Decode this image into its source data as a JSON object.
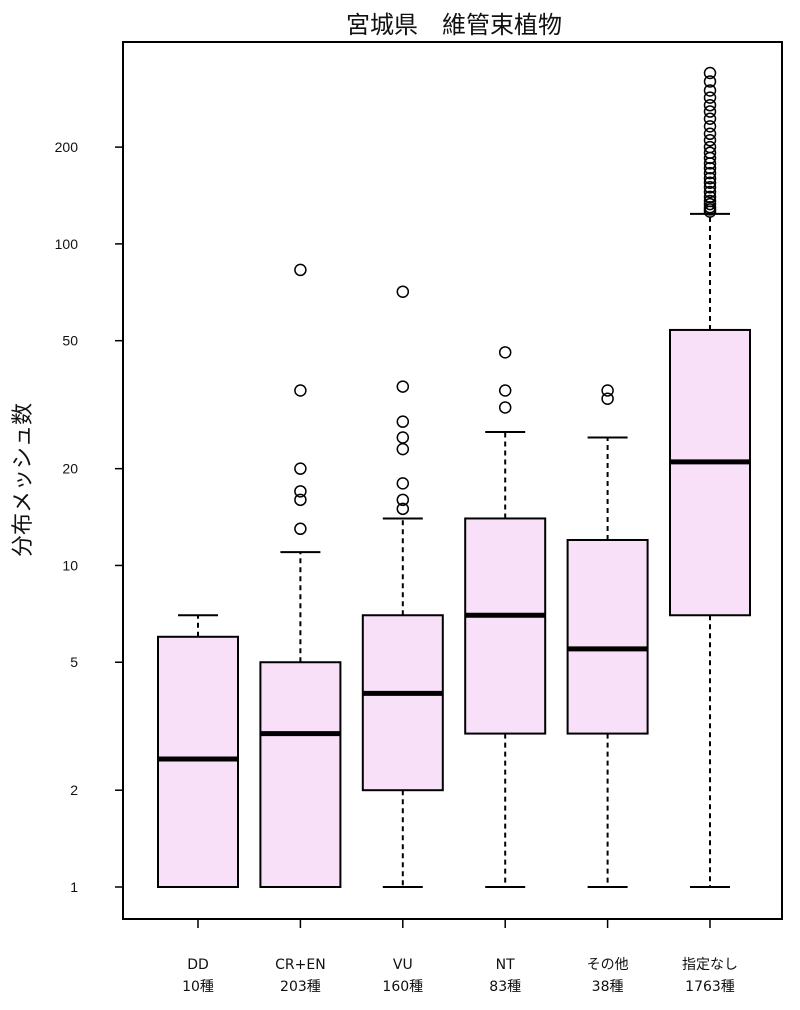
{
  "chart_data": {
    "type": "box",
    "title": "宮城県　維管束植物",
    "ylabel": "分布メッシュ数",
    "xlabel": "",
    "y_scale": "log",
    "ylim": [
      0.9,
      370
    ],
    "y_ticks": [
      1,
      2,
      5,
      10,
      20,
      50,
      100,
      200
    ],
    "y_tick_labels": [
      "1",
      "2",
      "5",
      "10",
      "20",
      "50",
      "100",
      "200"
    ],
    "box_fill": "#f8e0f8",
    "grid": false,
    "categories": [
      {
        "name": "DD",
        "count": "10種",
        "whisker_low": 1,
        "q1": 1,
        "median": 2.5,
        "q3": 6,
        "whisker_high": 7,
        "outliers": []
      },
      {
        "name": "CR+EN",
        "count": "203種",
        "whisker_low": 1,
        "q1": 1,
        "median": 3,
        "q3": 5,
        "whisker_high": 11,
        "outliers": [
          13,
          16,
          17,
          20,
          35,
          83
        ]
      },
      {
        "name": "VU",
        "count": "160種",
        "whisker_low": 1,
        "q1": 2,
        "median": 4,
        "q3": 7,
        "whisker_high": 14,
        "outliers": [
          15,
          16,
          18,
          23,
          25,
          28,
          36,
          71
        ]
      },
      {
        "name": "NT",
        "count": "83種",
        "whisker_low": 1,
        "q1": 3,
        "median": 7,
        "q3": 14,
        "whisker_high": 26,
        "outliers": [
          31,
          35,
          46
        ]
      },
      {
        "name": "その他",
        "count": "38種",
        "whisker_low": 1,
        "q1": 3,
        "median": 5.5,
        "q3": 12,
        "whisker_high": 25,
        "outliers": [
          33,
          35
        ]
      },
      {
        "name": "指定なし",
        "count": "1763種",
        "whisker_low": 1,
        "q1": 7,
        "median": 21,
        "q3": 54,
        "whisker_high": 124,
        "outliers": [
          126,
          128,
          130,
          133,
          136,
          140,
          145,
          150,
          155,
          160,
          166,
          172,
          178,
          185,
          192,
          200,
          210,
          220,
          232,
          245,
          258,
          270,
          285,
          300,
          320,
          340
        ]
      }
    ]
  }
}
